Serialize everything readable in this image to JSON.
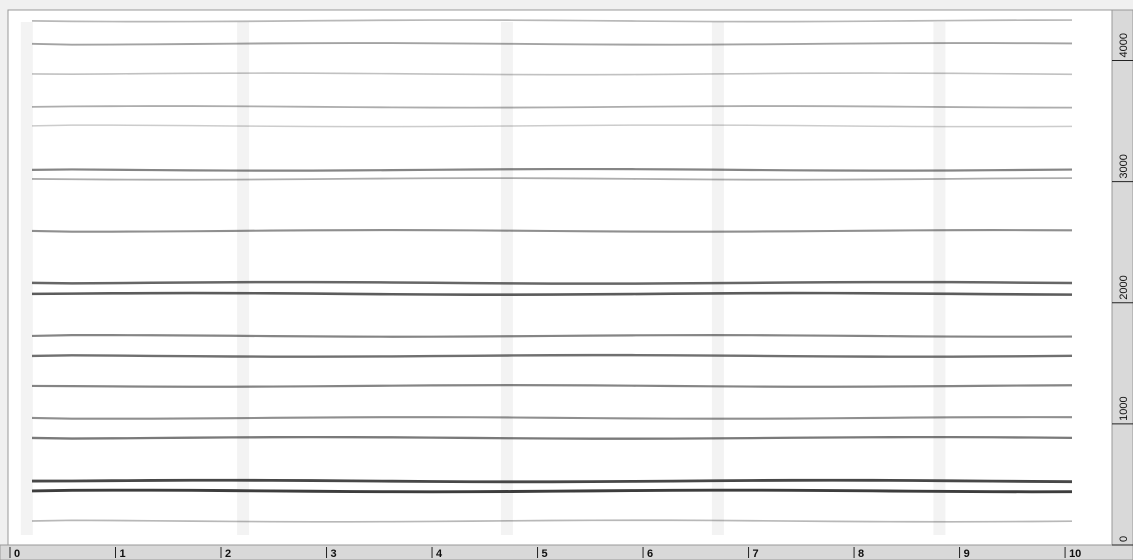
{
  "chart_data": {
    "type": "spectrogram",
    "xlim": [
      0,
      10.35
    ],
    "xticks": [
      0,
      1,
      2,
      3,
      4,
      5,
      6,
      7,
      8,
      9,
      10
    ],
    "ylim": [
      0,
      4400
    ],
    "yticks": [
      0,
      1000,
      2000,
      3000,
      4000
    ],
    "frequencies": [
      4327,
      4137,
      3889,
      3617,
      3460,
      3097,
      3022,
      2593,
      2164,
      2073,
      1726,
      1561,
      1313,
      1049,
      884,
      528,
      446,
      198
    ],
    "intensities": [
      0.35,
      0.45,
      0.3,
      0.4,
      0.25,
      0.6,
      0.4,
      0.55,
      0.75,
      0.8,
      0.6,
      0.7,
      0.6,
      0.55,
      0.65,
      0.9,
      0.95,
      0.35
    ],
    "onsets": [
      0.15,
      2.2,
      4.7,
      6.7,
      8.8
    ],
    "color": "#333333"
  }
}
